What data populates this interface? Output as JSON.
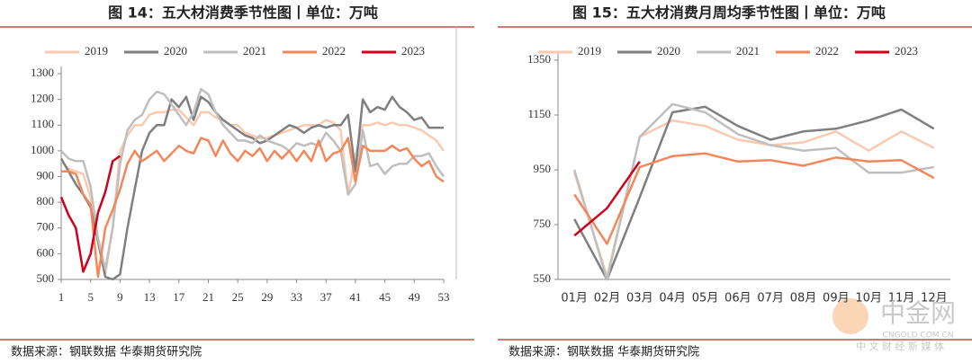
{
  "chart_data": [
    {
      "type": "line",
      "title": "图 14：五大材消费季节性图丨单位：万吨",
      "source": "数据来源：钢联数据 华泰期货研究院",
      "x": [
        1,
        2,
        3,
        4,
        5,
        6,
        7,
        8,
        9,
        10,
        11,
        12,
        13,
        14,
        15,
        16,
        17,
        18,
        19,
        20,
        21,
        22,
        23,
        24,
        25,
        26,
        27,
        28,
        29,
        30,
        31,
        32,
        33,
        34,
        35,
        36,
        37,
        38,
        39,
        40,
        41,
        42,
        43,
        44,
        45,
        46,
        47,
        48,
        49,
        50,
        51,
        52,
        53
      ],
      "xlim": [
        1,
        53
      ],
      "xticks": [
        1,
        5,
        9,
        13,
        17,
        21,
        25,
        29,
        33,
        37,
        41,
        45,
        49,
        53
      ],
      "ylim": [
        500,
        1300
      ],
      "yticks": [
        500,
        600,
        700,
        800,
        900,
        1000,
        1100,
        1200,
        1300
      ],
      "legend": "top",
      "series": [
        {
          "name": "2019",
          "color": "#f9c9b0",
          "values": [
            960,
            930,
            920,
            910,
            820,
            640,
            520,
            700,
            1000,
            1060,
            1100,
            1100,
            1140,
            1150,
            1150,
            1160,
            1160,
            1130,
            1100,
            1150,
            1150,
            1130,
            1120,
            1100,
            1100,
            1070,
            1060,
            1050,
            1050,
            1060,
            1070,
            1080,
            1090,
            1100,
            1100,
            1100,
            1120,
            1110,
            1080,
            830,
            980,
            1100,
            1100,
            1110,
            1100,
            1110,
            1100,
            1100,
            1090,
            1080,
            1060,
            1040,
            1000
          ]
        },
        {
          "name": "2020",
          "color": "#7f7f7f",
          "values": [
            970,
            920,
            870,
            830,
            780,
            650,
            510,
            500,
            520,
            700,
            850,
            1000,
            1070,
            1100,
            1100,
            1200,
            1170,
            1210,
            1120,
            1210,
            1190,
            1150,
            1120,
            1100,
            1080,
            1060,
            1050,
            1030,
            1040,
            1060,
            1080,
            1100,
            1090,
            1070,
            1090,
            1100,
            1090,
            1100,
            1100,
            1140,
            920,
            1200,
            1150,
            1170,
            1160,
            1210,
            1170,
            1150,
            1120,
            1130,
            1090,
            1090,
            1090
          ]
        },
        {
          "name": "2021",
          "color": "#bfbfbf",
          "values": [
            1000,
            970,
            960,
            960,
            860,
            660,
            540,
            700,
            950,
            1080,
            1120,
            1140,
            1200,
            1230,
            1220,
            1180,
            1140,
            1100,
            1150,
            1240,
            1220,
            1150,
            1100,
            1070,
            1040,
            1040,
            1030,
            1060,
            1040,
            1030,
            1020,
            1000,
            1030,
            1020,
            1030,
            1020,
            1070,
            1040,
            1000,
            830,
            870,
            1080,
            940,
            950,
            910,
            940,
            950,
            950,
            980,
            980,
            990,
            940,
            900
          ]
        },
        {
          "name": "2022",
          "color": "#f4875a",
          "values": [
            920,
            920,
            910,
            830,
            790,
            510,
            700,
            770,
            850,
            950,
            1000,
            960,
            980,
            1000,
            960,
            990,
            1020,
            1000,
            990,
            1050,
            1040,
            980,
            1040,
            990,
            960,
            1000,
            980,
            1010,
            960,
            1000,
            970,
            1000,
            960,
            1000,
            960,
            1040,
            960,
            990,
            1000,
            1050,
            880,
            1020,
            1000,
            1000,
            1000,
            1020,
            1000,
            1010,
            970,
            940,
            960,
            900,
            880
          ]
        },
        {
          "name": "2023",
          "color": "#d0021b",
          "values": [
            820,
            750,
            700,
            530,
            600,
            760,
            840,
            960,
            980,
            null,
            null,
            null,
            null,
            null,
            null,
            null,
            null,
            null,
            null,
            null,
            null,
            null,
            null,
            null,
            null,
            null,
            null,
            null,
            null,
            null,
            null,
            null,
            null,
            null,
            null,
            null,
            null,
            null,
            null,
            null,
            null,
            null,
            null,
            null,
            null,
            null,
            null,
            null,
            null,
            null,
            null,
            null,
            null
          ]
        }
      ]
    },
    {
      "type": "line",
      "title": "图 15：五大材消费月周均季节性图丨单位：万吨",
      "source": "数据来源：钢联数据 华泰期货研究院",
      "categories": [
        "01月",
        "02月",
        "03月",
        "04月",
        "05月",
        "06月",
        "07月",
        "08月",
        "09月",
        "10月",
        "11月",
        "12月"
      ],
      "ylim": [
        550,
        1350
      ],
      "yticks": [
        550,
        750,
        950,
        1150,
        1350
      ],
      "legend": "top",
      "annotations": [
        "中金网",
        "CNGOLD.COM.CN",
        "中 文 财 经 新 媒 体"
      ],
      "series": [
        {
          "name": "2019",
          "color": "#f9c9b0",
          "values": [
            940,
            560,
            1070,
            1130,
            1110,
            1060,
            1040,
            1050,
            1090,
            1020,
            1090,
            1030
          ]
        },
        {
          "name": "2020",
          "color": "#7f7f7f",
          "values": [
            770,
            550,
            850,
            1160,
            1180,
            1110,
            1060,
            1090,
            1100,
            1130,
            1170,
            1100
          ]
        },
        {
          "name": "2021",
          "color": "#bfbfbf",
          "values": [
            950,
            550,
            1070,
            1190,
            1160,
            1080,
            1040,
            1020,
            1030,
            940,
            940,
            960
          ]
        },
        {
          "name": "2022",
          "color": "#f4875a",
          "values": [
            860,
            680,
            960,
            1000,
            1010,
            980,
            985,
            965,
            995,
            980,
            985,
            920
          ]
        },
        {
          "name": "2023",
          "color": "#d0021b",
          "values": [
            710,
            810,
            980,
            null,
            null,
            null,
            null,
            null,
            null,
            null,
            null,
            null
          ]
        }
      ]
    }
  ]
}
